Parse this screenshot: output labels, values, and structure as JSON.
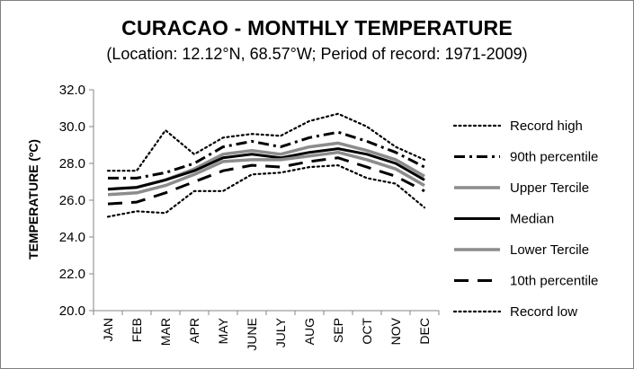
{
  "chart_data": {
    "type": "line",
    "title": "CURACAO - MONTHLY TEMPERATURE",
    "subtitle": "(Location: 12.12°N, 68.57°W; Period of record: 1971-2009)",
    "ylabel": "TEMPERATURE (ºC)",
    "xlabel": "",
    "ylim": [
      20,
      32
    ],
    "yticks": [
      "20.0",
      "22.0",
      "24.0",
      "26.0",
      "28.0",
      "30.0",
      "32.0"
    ],
    "categories": [
      "JAN",
      "FEB",
      "MAR",
      "APR",
      "MAY",
      "JUNE",
      "JULY",
      "AUG",
      "SEP",
      "OCT",
      "NOV",
      "DEC"
    ],
    "legend_position": "right",
    "grid": false,
    "series": [
      {
        "name": "Record high",
        "style": "dotted",
        "color": "#000000",
        "values": [
          27.6,
          27.6,
          29.8,
          28.5,
          29.4,
          29.6,
          29.5,
          30.3,
          30.7,
          30.0,
          28.9,
          28.2
        ]
      },
      {
        "name": "90th percentile",
        "style": "dashdot",
        "color": "#000000",
        "values": [
          27.2,
          27.2,
          27.5,
          28.0,
          28.9,
          29.2,
          28.9,
          29.4,
          29.7,
          29.2,
          28.6,
          27.8
        ]
      },
      {
        "name": "Upper Tercile",
        "style": "solid-gray",
        "color": "#808080",
        "values": [
          26.6,
          26.7,
          27.1,
          27.7,
          28.5,
          28.7,
          28.5,
          28.9,
          29.1,
          28.7,
          28.2,
          27.3
        ]
      },
      {
        "name": "Median",
        "style": "solid",
        "color": "#000000",
        "values": [
          26.6,
          26.7,
          27.1,
          27.6,
          28.3,
          28.5,
          28.3,
          28.6,
          28.8,
          28.5,
          28.0,
          27.1
        ]
      },
      {
        "name": "Lower Tercile",
        "style": "solid-gray",
        "color": "#808080",
        "values": [
          26.3,
          26.4,
          26.8,
          27.4,
          28.1,
          28.2,
          28.2,
          28.4,
          28.6,
          28.2,
          27.7,
          26.8
        ]
      },
      {
        "name": "10th percentile",
        "style": "longdash",
        "color": "#000000",
        "values": [
          25.8,
          25.9,
          26.4,
          27.0,
          27.6,
          27.9,
          27.8,
          28.1,
          28.3,
          27.8,
          27.3,
          26.5
        ]
      },
      {
        "name": "Record low",
        "style": "dotted",
        "color": "#000000",
        "values": [
          25.1,
          25.4,
          25.3,
          26.5,
          26.5,
          27.4,
          27.5,
          27.8,
          27.9,
          27.2,
          26.9,
          25.6
        ]
      }
    ]
  }
}
